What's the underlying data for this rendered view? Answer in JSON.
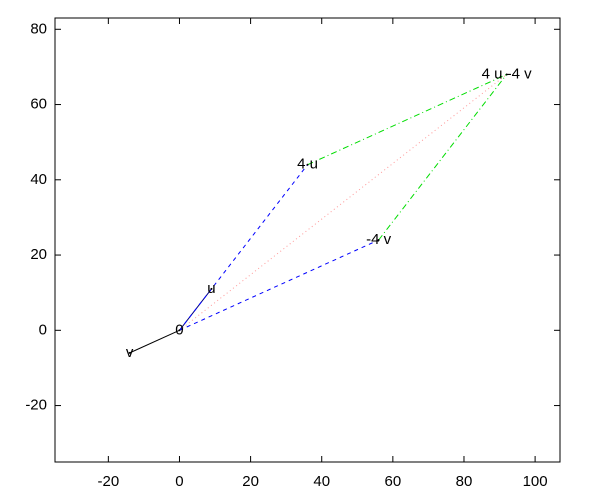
{
  "chart_data": {
    "type": "vector",
    "xlim": [
      -35,
      107
    ],
    "ylim": [
      -35,
      83
    ],
    "xticks": [
      -20,
      0,
      20,
      40,
      60,
      80,
      100
    ],
    "yticks": [
      -20,
      0,
      20,
      40,
      60,
      80
    ],
    "points": [
      {
        "label": "0",
        "x": 0,
        "y": 0
      },
      {
        "label": "u",
        "x": 9,
        "y": 11
      },
      {
        "label": "v",
        "x": -14,
        "y": -6
      },
      {
        "label": "4 u",
        "x": 36,
        "y": 44
      },
      {
        "label": "-4 v",
        "x": 56,
        "y": 24
      },
      {
        "label": "4 u -4 v",
        "x": 92,
        "y": 68
      }
    ],
    "segments": [
      {
        "from": 0,
        "to": 1,
        "color": "#000080",
        "dash": "none"
      },
      {
        "from": 0,
        "to": 2,
        "color": "#000000",
        "dash": "none"
      },
      {
        "from": 0,
        "to": 3,
        "color": "#0000ff",
        "dash": "4 4"
      },
      {
        "from": 0,
        "to": 4,
        "color": "#0000ff",
        "dash": "4 4"
      },
      {
        "from": 3,
        "to": 5,
        "color": "#00dd00",
        "dash": "6 3 1 3"
      },
      {
        "from": 4,
        "to": 5,
        "color": "#00dd00",
        "dash": "6 3 1 3"
      },
      {
        "from": 0,
        "to": 5,
        "color": "#ff9999",
        "dash": "1 3"
      }
    ]
  }
}
